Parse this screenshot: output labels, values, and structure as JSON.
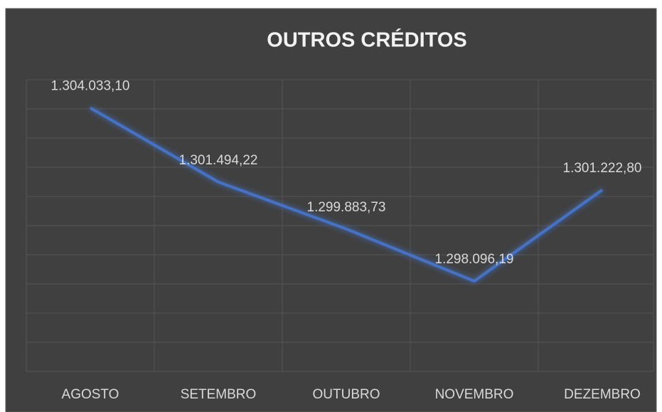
{
  "chart_data": {
    "type": "line",
    "title": "OUTROS CRÉDITOS",
    "categories": [
      "AGOSTO",
      "SETEMBRO",
      "OUTUBRO",
      "NOVEMBRO",
      "DEZEMBRO"
    ],
    "series": [
      {
        "name": "OUTROS CRÉDITOS",
        "color": "#4472c4",
        "values": [
          1304033.1,
          1301494.22,
          1299883.73,
          1298096.19,
          1301222.8
        ],
        "value_labels": [
          "1.304.033,10",
          "1.301.494,22",
          "1.299.883,73",
          "1.298.096,19",
          "1.301.222,80"
        ]
      }
    ],
    "ylim": [
      1295000,
      1305000
    ],
    "yticks": [
      1295000,
      1296000,
      1297000,
      1298000,
      1299000,
      1300000,
      1301000,
      1302000,
      1303000,
      1304000,
      1305000
    ],
    "grid": true
  }
}
